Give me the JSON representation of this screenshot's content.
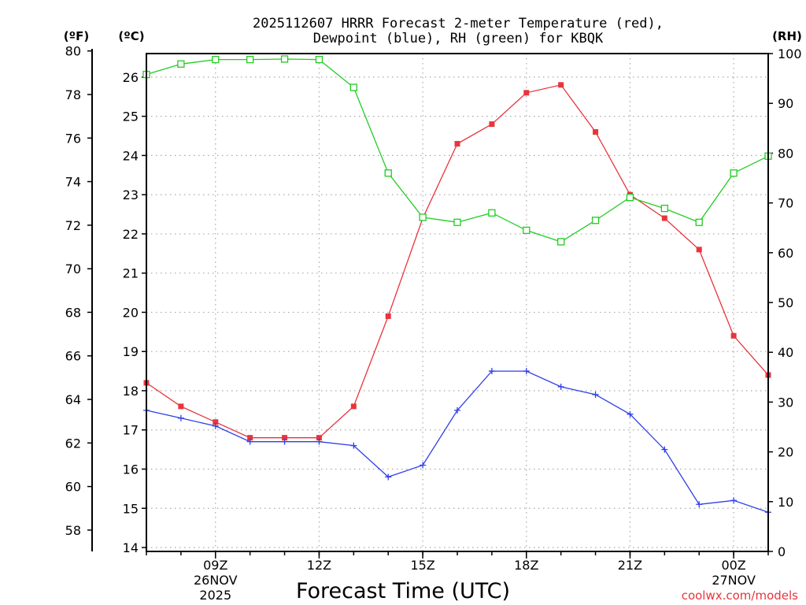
{
  "chart_data": {
    "type": "line",
    "title_line1": "2025112607 HRRR Forecast 2-meter Temperature (red),",
    "title_line2": "Dewpoint (blue), RH (green) for KBQK",
    "left_unit_f": "(ºF)",
    "left_unit_c": "(ºC)",
    "right_unit": "(RH)",
    "xlabel": "Forecast Time (UTC)",
    "credit": "coolwx.com/models",
    "x_hours": [
      7,
      8,
      9,
      10,
      11,
      12,
      13,
      14,
      15,
      16,
      17,
      18,
      19,
      20,
      21,
      22,
      23,
      24,
      25
    ],
    "xlim": [
      7,
      25
    ],
    "x_ticks": [
      {
        "hour": 9,
        "label": "09Z",
        "date": "26NOV",
        "year": "2025"
      },
      {
        "hour": 12,
        "label": "12Z"
      },
      {
        "hour": 15,
        "label": "15Z"
      },
      {
        "hour": 18,
        "label": "18Z"
      },
      {
        "hour": 21,
        "label": "21Z"
      },
      {
        "hour": 24,
        "label": "00Z",
        "date": "27NOV"
      }
    ],
    "c_axis": {
      "range": [
        13.9,
        26.6
      ],
      "ticks": [
        "14",
        "15",
        "16",
        "17",
        "18",
        "19",
        "20",
        "21",
        "22",
        "23",
        "24",
        "25",
        "26"
      ]
    },
    "f_axis": {
      "ticks": [
        "58",
        "60",
        "62",
        "64",
        "66",
        "68",
        "70",
        "72",
        "74",
        "76",
        "78",
        "80"
      ]
    },
    "rh_axis": {
      "range": [
        0,
        100
      ],
      "ticks": [
        "0",
        "10",
        "20",
        "30",
        "40",
        "50",
        "60",
        "70",
        "80",
        "90",
        "100"
      ]
    },
    "series": [
      {
        "name": "Temperature",
        "unit": "C",
        "color": "#e8343c",
        "marker": "filled-square",
        "values": [
          18.2,
          17.6,
          17.2,
          16.8,
          16.8,
          16.8,
          17.6,
          19.9,
          22.4,
          24.3,
          24.8,
          25.6,
          25.8,
          24.6,
          23.0,
          22.4,
          21.6,
          19.4,
          18.4
        ]
      },
      {
        "name": "Dewpoint",
        "unit": "C",
        "color": "#2f3fe8",
        "marker": "plus",
        "values": [
          17.5,
          17.3,
          17.1,
          16.7,
          16.7,
          16.7,
          16.6,
          15.8,
          16.1,
          17.5,
          18.5,
          18.5,
          18.1,
          17.9,
          17.4,
          16.5,
          15.1,
          15.2,
          14.9
        ]
      },
      {
        "name": "RH",
        "unit": "%",
        "color": "#22cc22",
        "marker": "open-square",
        "values": [
          95.8,
          97.9,
          98.8,
          98.8,
          98.9,
          98.8,
          93.2,
          76.0,
          67.1,
          66.1,
          68.0,
          64.5,
          62.2,
          66.5,
          71.1,
          68.9,
          66.1,
          76.0,
          79.4
        ]
      }
    ]
  }
}
